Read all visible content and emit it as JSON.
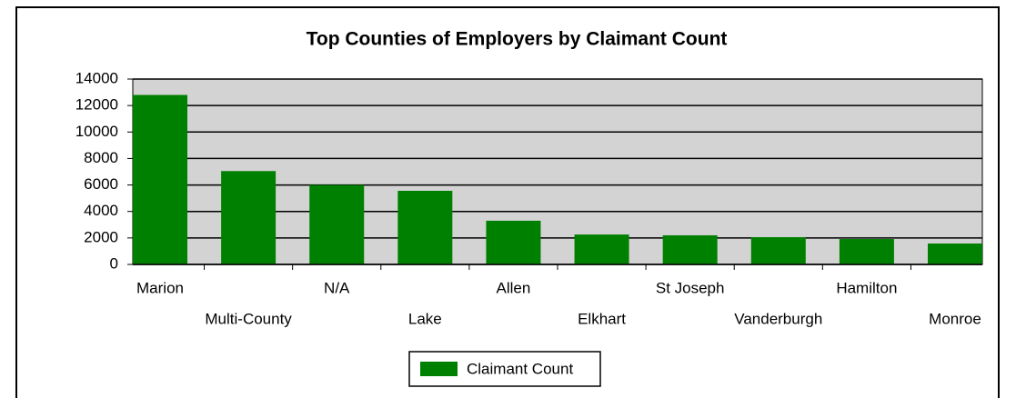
{
  "chart_data": {
    "type": "bar",
    "title": "Top Counties of Employers by Claimant Count",
    "categories": [
      "Marion",
      "Multi-County",
      "N/A",
      "Lake",
      "Allen",
      "Elkhart",
      "St Joseph",
      "Vanderburgh",
      "Hamilton",
      "Monroe"
    ],
    "series": [
      {
        "name": "Claimant Count",
        "color": "#008000",
        "values": [
          12800,
          7050,
          6000,
          5560,
          3300,
          2260,
          2200,
          2060,
          1920,
          1580
        ]
      }
    ],
    "ylim": [
      0,
      14000
    ],
    "yticks": [
      0,
      2000,
      4000,
      6000,
      8000,
      10000,
      12000,
      14000
    ],
    "grid": true,
    "legend": "bottom"
  }
}
